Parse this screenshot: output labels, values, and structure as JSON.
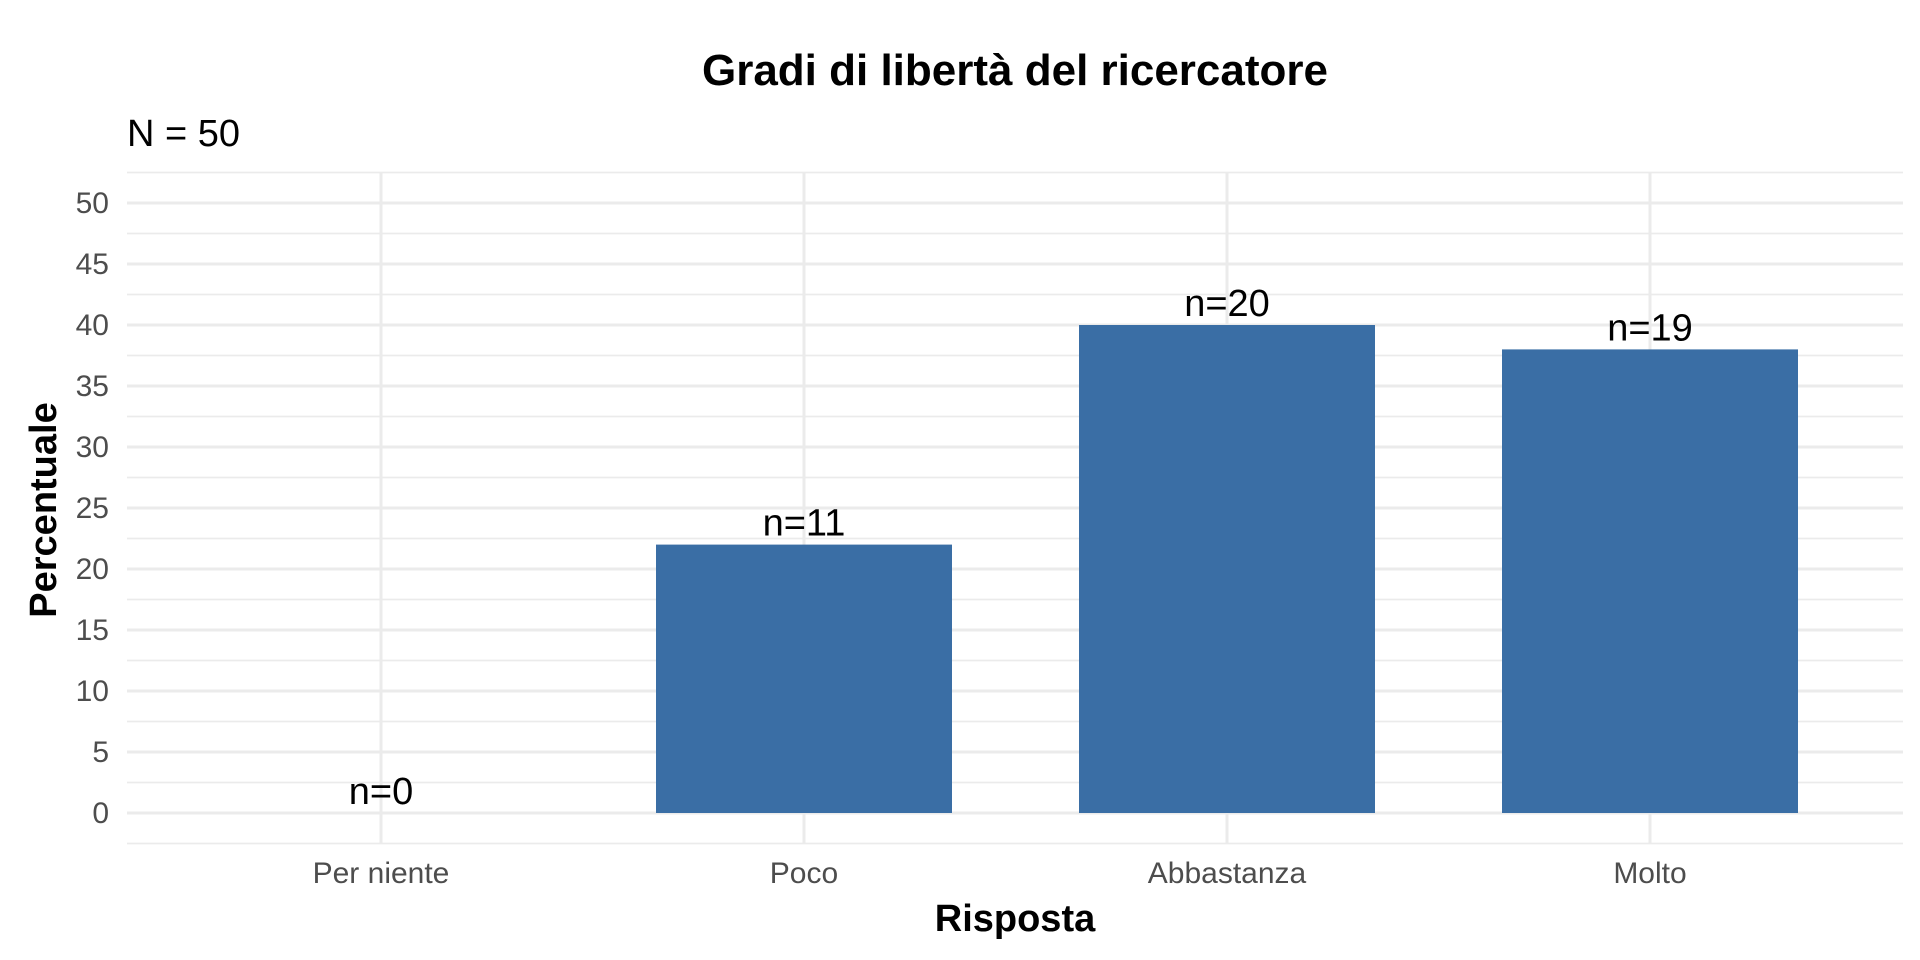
{
  "chart_data": {
    "type": "bar",
    "title": "Gradi di libertà del ricercatore",
    "subtitle": "N = 50",
    "xlabel": "Risposta",
    "ylabel": "Percentuale",
    "categories": [
      "Per niente",
      "Poco",
      "Abbastanza",
      "Molto"
    ],
    "values": [
      0,
      22,
      40,
      38
    ],
    "counts": [
      0,
      11,
      20,
      19
    ],
    "data_labels": [
      "n=0",
      "n=11",
      "n=20",
      "n=19"
    ],
    "ylim": [
      0,
      52.5
    ],
    "yticks": [
      0,
      5,
      10,
      15,
      20,
      25,
      30,
      35,
      40,
      45,
      50
    ],
    "ytick_labels": [
      "0",
      "5",
      "10",
      "15",
      "20",
      "25",
      "30",
      "35",
      "40",
      "45",
      "50"
    ],
    "grid": true,
    "legend": "none",
    "colors": {
      "bar": "#3a6ea5",
      "grid": "#ebebeb",
      "tick_text": "#4d4d4d",
      "text": "#000000"
    }
  }
}
